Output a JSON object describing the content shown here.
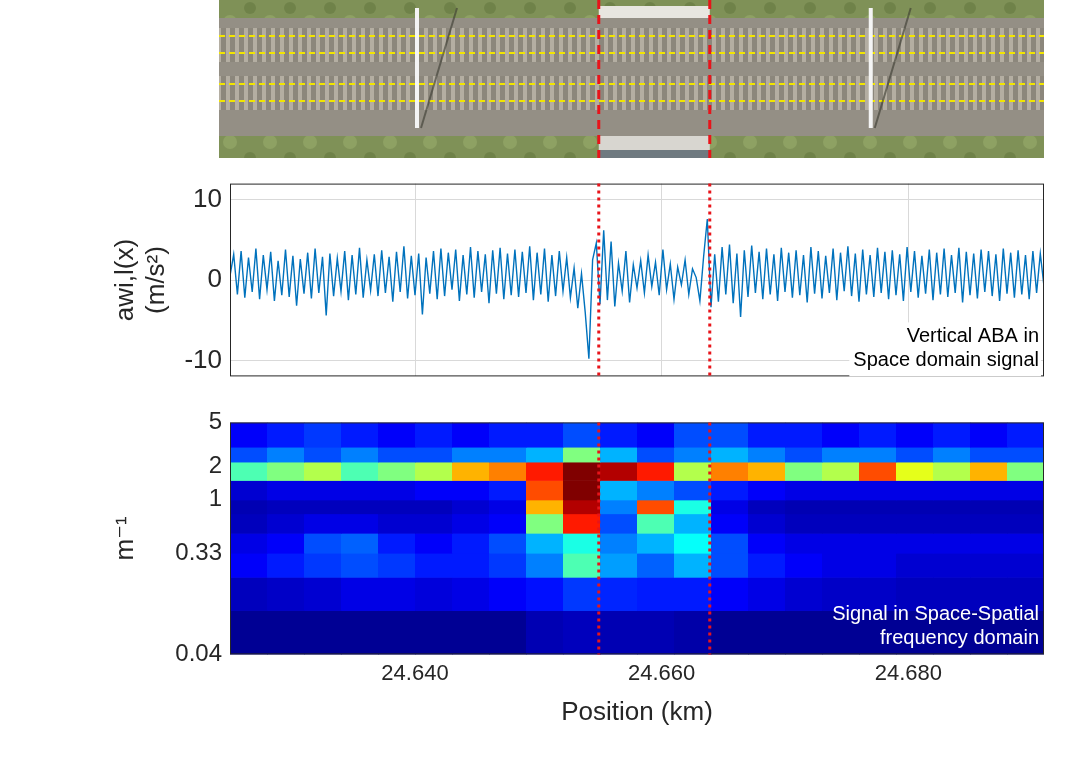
{
  "chart_data": [
    {
      "type": "line",
      "ylabel": [
        "awi,l(x)",
        "(m/s²)"
      ],
      "annotation": [
        "Vertical ABA in",
        "Space domain signal"
      ],
      "color": "#0072bd",
      "xlim": [
        24.625,
        24.691
      ],
      "xticks": [
        {
          "value": 24.64,
          "label": "24.640"
        },
        {
          "value": 24.66,
          "label": "24.660"
        },
        {
          "value": 24.68,
          "label": "24.680"
        }
      ],
      "ylim": [
        -12,
        12
      ],
      "yticks": [
        -10,
        0,
        10
      ],
      "grid": true,
      "tick_labels": "y",
      "vlines": [
        24.6549,
        24.6639
      ],
      "x": [
        24.625,
        24.6253,
        24.6256,
        24.6259,
        24.6262,
        24.6265,
        24.6268,
        24.6271,
        24.6274,
        24.6277,
        24.628,
        24.6283,
        24.6286,
        24.6289,
        24.6292,
        24.6295,
        24.6298,
        24.6301,
        24.6304,
        24.6307,
        24.631,
        24.6313,
        24.6316,
        24.6319,
        24.6322,
        24.6325,
        24.6328,
        24.6331,
        24.6334,
        24.6337,
        24.634,
        24.6343,
        24.6346,
        24.6349,
        24.6352,
        24.6355,
        24.6358,
        24.6361,
        24.6364,
        24.6367,
        24.637,
        24.6373,
        24.6376,
        24.6379,
        24.6382,
        24.6385,
        24.6388,
        24.6391,
        24.6394,
        24.6397,
        24.64,
        24.6403,
        24.6406,
        24.6409,
        24.6412,
        24.6415,
        24.6418,
        24.6421,
        24.6424,
        24.6427,
        24.643,
        24.6433,
        24.6436,
        24.6439,
        24.6442,
        24.6445,
        24.6448,
        24.6451,
        24.6454,
        24.6457,
        24.646,
        24.6463,
        24.6466,
        24.6469,
        24.6472,
        24.6475,
        24.6478,
        24.6481,
        24.6484,
        24.6487,
        24.649,
        24.6493,
        24.6496,
        24.6499,
        24.6502,
        24.6505,
        24.6508,
        24.6511,
        24.6514,
        24.6517,
        24.652,
        24.6523,
        24.6526,
        24.6529,
        24.6532,
        24.6535,
        24.6538,
        24.6541,
        24.6544,
        24.6547,
        24.655,
        24.6553,
        24.6556,
        24.6559,
        24.6562,
        24.6565,
        24.6568,
        24.6571,
        24.6574,
        24.6577,
        24.658,
        24.6583,
        24.6586,
        24.6589,
        24.6592,
        24.6595,
        24.6598,
        24.6601,
        24.6604,
        24.6607,
        24.661,
        24.6613,
        24.6616,
        24.6619,
        24.6622,
        24.6625,
        24.6628,
        24.6631,
        24.6634,
        24.6637,
        24.664,
        24.6643,
        24.6646,
        24.6649,
        24.6652,
        24.6655,
        24.6658,
        24.6661,
        24.6664,
        24.6667,
        24.667,
        24.6673,
        24.6676,
        24.6679,
        24.6682,
        24.6685,
        24.6688,
        24.6691,
        24.6694,
        24.6697,
        24.67,
        24.6703,
        24.6706,
        24.6709,
        24.6712,
        24.6715,
        24.6718,
        24.6721,
        24.6724,
        24.6727,
        24.673,
        24.6733,
        24.6736,
        24.6739,
        24.6742,
        24.6745,
        24.6748,
        24.6751,
        24.6754,
        24.6757,
        24.676,
        24.6763,
        24.6766,
        24.6769,
        24.6772,
        24.6775,
        24.6778,
        24.6781,
        24.6784,
        24.6787,
        24.679,
        24.6793,
        24.6796,
        24.6799,
        24.6802,
        24.6805,
        24.6808,
        24.6811,
        24.6814,
        24.6817,
        24.682,
        24.6823,
        24.6826,
        24.6829,
        24.6832,
        24.6835,
        24.6838,
        24.6841,
        24.6844,
        24.6847,
        24.685,
        24.6853,
        24.6856,
        24.6859,
        24.6862,
        24.6865,
        24.6868,
        24.6871,
        24.6874,
        24.6877,
        24.688,
        24.6883,
        24.6886,
        24.6889,
        24.6892,
        24.6895,
        24.6898,
        24.6901,
        24.6904,
        24.6907,
        24.691
      ],
      "values": [
        0.5,
        3.2,
        -1.8,
        3.6,
        -2.2,
        2.8,
        -1.5,
        3.9,
        -2.4,
        3.1,
        -1.2,
        3.5,
        -2.6,
        2.4,
        -1.9,
        3.8,
        -2.1,
        3.0,
        -3.2,
        2.6,
        -1.7,
        3.4,
        -2.3,
        3.9,
        -1.6,
        2.9,
        -4.4,
        3.3,
        -2.0,
        2.7,
        -1.4,
        3.6,
        -2.5,
        3.1,
        -1.8,
        4.0,
        -2.2,
        2.5,
        -1.3,
        3.2,
        -2.0,
        3.7,
        -1.6,
        2.9,
        -2.7,
        3.5,
        -1.5,
        4.2,
        -2.3,
        3.0,
        -1.9,
        3.3,
        -4.3,
        2.8,
        -1.7,
        3.6,
        -2.4,
        3.9,
        -2.0,
        3.4,
        -1.2,
        3.8,
        -2.6,
        3.1,
        -1.8,
        4.1,
        -2.2,
        3.6,
        -1.5,
        3.2,
        -2.9,
        3.7,
        -1.7,
        4.0,
        -2.4,
        3.3,
        -1.9,
        3.8,
        -2.1,
        3.5,
        -1.6,
        4.2,
        -2.5,
        3.4,
        -1.8,
        3.9,
        -2.7,
        3.1,
        -2.0,
        3.6,
        -1.4,
        2.8,
        -2.2,
        1.5,
        -3.5,
        0.8,
        -4.0,
        -9.8,
        2.5,
        4.6,
        -3.0,
        6.2,
        -2.5,
        4.8,
        -3.3,
        2.1,
        -1.4,
        3.6,
        -2.8,
        1.9,
        -1.0,
        2.4,
        -1.6,
        3.1,
        -0.8,
        2.2,
        -1.9,
        3.8,
        -1.2,
        2.0,
        -2.4,
        1.6,
        -0.6,
        2.5,
        -1.8,
        1.4,
        0.3,
        -2.6,
        2.9,
        7.6,
        -3.4,
        3.2,
        -2.7,
        4.1,
        -1.8,
        4.4,
        -2.9,
        3.3,
        -4.6,
        3.7,
        -2.1,
        4.3,
        -1.6,
        3.5,
        -2.4,
        3.9,
        -1.8,
        3.2,
        -2.6,
        4.0,
        -1.5,
        3.4,
        -2.2,
        3.7,
        -1.9,
        3.1,
        -2.8,
        4.1,
        -1.7,
        3.6,
        -2.3,
        3.0,
        -1.6,
        3.9,
        -2.5,
        3.4,
        -1.4,
        4.2,
        -2.0,
        3.3,
        -2.7,
        3.8,
        -1.8,
        3.1,
        -2.1,
        4.0,
        -1.6,
        3.5,
        -2.4,
        3.7,
        -1.9,
        3.2,
        -2.6,
        4.1,
        -1.5,
        3.6,
        -2.2,
        3.0,
        -1.7,
        3.8,
        -2.5,
        3.4,
        -1.8,
        3.9,
        -2.1,
        3.1,
        -1.6,
        4.0,
        -2.8,
        3.5,
        -1.9,
        3.3,
        -2.3,
        3.8,
        -1.5,
        3.6,
        -2.0,
        3.2,
        -2.6,
        3.9,
        -1.7,
        3.4,
        -2.2,
        3.7,
        -1.8,
        3.1,
        -2.4,
        3.6,
        -1.6,
        3.3,
        -0.8
      ]
    },
    {
      "type": "heatmap",
      "xlabel": "Position (km)",
      "ylabel": "m⁻¹",
      "annotation": [
        "Signal in Space-Spatial",
        "frequency domain"
      ],
      "log": "y",
      "grid": false,
      "xlim": [
        24.625,
        24.691
      ],
      "xticks": [
        {
          "value": 24.64,
          "label": "24.640"
        },
        {
          "value": 24.66,
          "label": "24.660"
        },
        {
          "value": 24.68,
          "label": "24.680"
        }
      ],
      "ylim": [
        0.04,
        5
      ],
      "yticks": [
        0.04,
        0.33,
        1,
        2,
        5
      ],
      "vlines": [
        24.6549,
        24.6639
      ],
      "x_edges": [
        24.625,
        24.628,
        24.631,
        24.634,
        24.637,
        24.64,
        24.643,
        24.646,
        24.649,
        24.652,
        24.655,
        24.658,
        24.661,
        24.664,
        24.667,
        24.67,
        24.673,
        24.676,
        24.679,
        24.682,
        24.685,
        24.688,
        24.691
      ],
      "y_edges": [
        0.04,
        0.1,
        0.2,
        0.33,
        0.5,
        0.75,
        1,
        1.5,
        2.2,
        3,
        5
      ],
      "zlim": [
        0,
        1
      ],
      "z": [
        [
          0.02,
          0.02,
          0.02,
          0.02,
          0.02,
          0.02,
          0.02,
          0.02,
          0.05,
          0.06,
          0.05,
          0.05,
          0.04,
          0.02,
          0.02,
          0.02,
          0.02,
          0.02,
          0.02,
          0.02,
          0.02,
          0.02
        ],
        [
          0.06,
          0.07,
          0.08,
          0.1,
          0.1,
          0.09,
          0.1,
          0.12,
          0.14,
          0.18,
          0.16,
          0.15,
          0.15,
          0.12,
          0.1,
          0.08,
          0.07,
          0.07,
          0.06,
          0.06,
          0.06,
          0.06
        ],
        [
          0.12,
          0.15,
          0.18,
          0.2,
          0.18,
          0.15,
          0.15,
          0.18,
          0.25,
          0.45,
          0.28,
          0.22,
          0.3,
          0.2,
          0.15,
          0.12,
          0.1,
          0.1,
          0.08,
          0.08,
          0.08,
          0.08
        ],
        [
          0.1,
          0.12,
          0.2,
          0.22,
          0.15,
          0.12,
          0.15,
          0.2,
          0.3,
          0.4,
          0.25,
          0.3,
          0.38,
          0.2,
          0.12,
          0.1,
          0.1,
          0.1,
          0.1,
          0.1,
          0.1,
          0.1
        ],
        [
          0.06,
          0.08,
          0.1,
          0.1,
          0.08,
          0.08,
          0.1,
          0.12,
          0.5,
          0.85,
          0.2,
          0.45,
          0.3,
          0.12,
          0.08,
          0.06,
          0.06,
          0.06,
          0.06,
          0.06,
          0.06,
          0.06
        ],
        [
          0.05,
          0.06,
          0.06,
          0.06,
          0.06,
          0.06,
          0.08,
          0.1,
          0.7,
          0.95,
          0.25,
          0.8,
          0.4,
          0.1,
          0.06,
          0.05,
          0.05,
          0.05,
          0.05,
          0.05,
          0.05,
          0.05
        ],
        [
          0.08,
          0.1,
          0.1,
          0.1,
          0.1,
          0.12,
          0.12,
          0.15,
          0.8,
          1.0,
          0.3,
          0.25,
          0.2,
          0.15,
          0.12,
          0.1,
          0.1,
          0.1,
          0.1,
          0.1,
          0.1,
          0.1
        ],
        [
          0.45,
          0.5,
          0.55,
          0.45,
          0.5,
          0.55,
          0.7,
          0.75,
          0.85,
          1.0,
          0.95,
          0.85,
          0.55,
          0.75,
          0.7,
          0.5,
          0.55,
          0.8,
          0.6,
          0.55,
          0.7,
          0.5
        ],
        [
          0.2,
          0.25,
          0.2,
          0.25,
          0.2,
          0.2,
          0.25,
          0.25,
          0.3,
          0.5,
          0.3,
          0.2,
          0.25,
          0.3,
          0.25,
          0.2,
          0.25,
          0.25,
          0.2,
          0.25,
          0.2,
          0.2
        ],
        [
          0.12,
          0.15,
          0.18,
          0.15,
          0.12,
          0.15,
          0.12,
          0.15,
          0.15,
          0.2,
          0.15,
          0.12,
          0.2,
          0.2,
          0.15,
          0.15,
          0.12,
          0.15,
          0.12,
          0.15,
          0.12,
          0.15
        ]
      ]
    }
  ]
}
